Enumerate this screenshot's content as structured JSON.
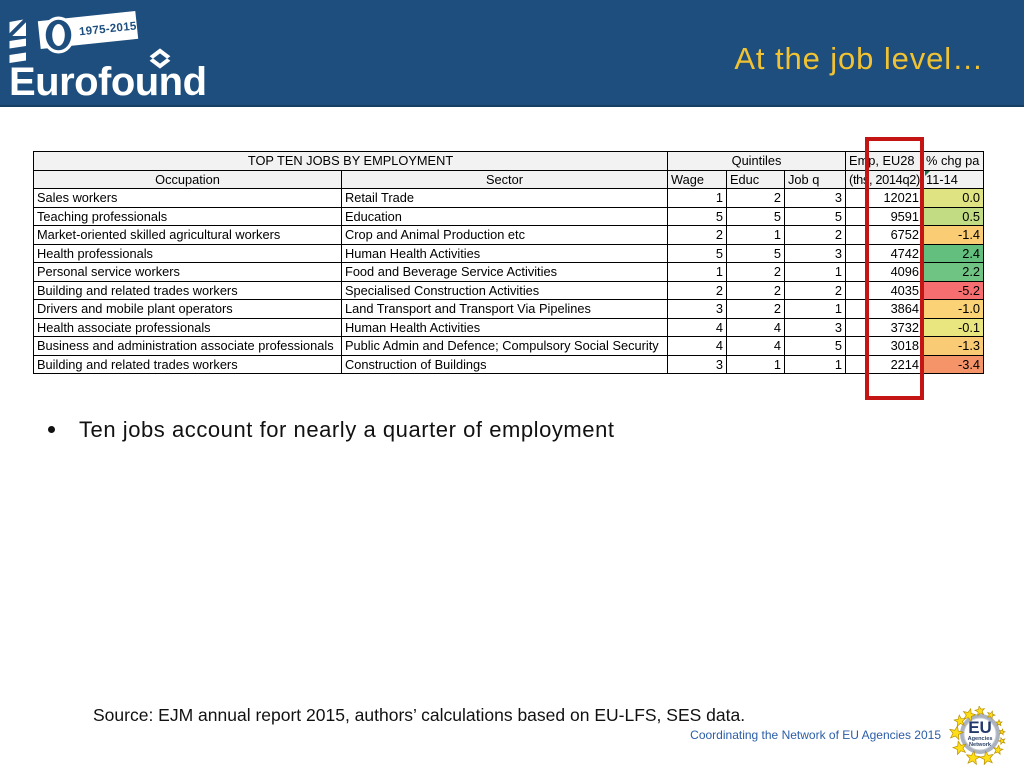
{
  "header": {
    "title": "At the job level…",
    "logo": {
      "number": "40",
      "years": "1975-2015",
      "brand": "Eurofound"
    }
  },
  "bullet": {
    "text": "Ten jobs account for nearly a quarter of employment"
  },
  "footer": {
    "source": "Source: EJM annual report 2015, authors’ calculations based on EU-LFS, SES data.",
    "coordinating": "Coordinating the Network of EU Agencies 2015",
    "eu_badge": {
      "line1": "EU",
      "line2": "Agencies",
      "line3": "Network"
    }
  },
  "colors": {
    "band_blue": "#1D4E7E",
    "title_gold": "#F1C232",
    "footer_blue": "#2B5DA7",
    "highlight_red": "#C41414",
    "header_gray": "#F2F2F2",
    "scale_green": "#63BE7B",
    "scale_yellow": "#FFEB84",
    "scale_red": "#F8696B"
  },
  "chart_data": {
    "type": "table",
    "title": "TOP TEN JOBS BY EMPLOYMENT",
    "group_headers": [
      {
        "label": "TOP TEN JOBS BY EMPLOYMENT",
        "span": 2
      },
      {
        "label": "Quintiles",
        "span": 3
      },
      {
        "label": "Emp, EU28",
        "span": 1
      },
      {
        "label": "% chg pa",
        "span": 1
      }
    ],
    "columns": [
      "Occupation",
      "Sector",
      "Wage",
      "Educ",
      "Job q",
      "(ths, 2014q2)",
      "11-14"
    ],
    "rows": [
      {
        "occupation": "Sales workers",
        "sector": "Retail Trade",
        "wage": "1",
        "educ": "2",
        "jobq": "3",
        "emp": "12021",
        "chg": "0.0",
        "chg_color": "#DFE382"
      },
      {
        "occupation": "Teaching professionals",
        "sector": "Education",
        "wage": "5",
        "educ": "5",
        "jobq": "5",
        "emp": "9591",
        "chg": "0.5",
        "chg_color": "#C2DC83"
      },
      {
        "occupation": "Market-oriented skilled agricultural workers",
        "sector": "Crop and Animal Production etc",
        "wage": "2",
        "educ": "1",
        "jobq": "2",
        "emp": "6752",
        "chg": "-1.4",
        "chg_color": "#FACC74"
      },
      {
        "occupation": "Health professionals",
        "sector": "Human Health Activities",
        "wage": "5",
        "educ": "5",
        "jobq": "3",
        "emp": "4742",
        "chg": "2.4",
        "chg_color": "#63BF7D"
      },
      {
        "occupation": "Personal service workers",
        "sector": "Food and Beverage Service Activities",
        "wage": "1",
        "educ": "2",
        "jobq": "1",
        "emp": "4096",
        "chg": "2.2",
        "chg_color": "#6FC383"
      },
      {
        "occupation": "Building and related trades workers",
        "sector": "Specialised Construction Activities",
        "wage": "2",
        "educ": "2",
        "jobq": "2",
        "emp": "4035",
        "chg": "-5.2",
        "chg_color": "#F76E71"
      },
      {
        "occupation": "Drivers and mobile plant operators",
        "sector": "Land Transport and Transport Via Pipelines",
        "wage": "3",
        "educ": "2",
        "jobq": "1",
        "emp": "3864",
        "chg": "-1.0",
        "chg_color": "#FBD376"
      },
      {
        "occupation": "Health associate professionals",
        "sector": "Human Health Activities",
        "wage": "4",
        "educ": "4",
        "jobq": "3",
        "emp": "3732",
        "chg": "-0.1",
        "chg_color": "#E9E680"
      },
      {
        "occupation": "Business and administration associate professionals",
        "sector": "Public Admin and Defence; Compulsory Social Security",
        "wage": "4",
        "educ": "4",
        "jobq": "5",
        "emp": "3018",
        "chg": "-1.3",
        "chg_color": "#FACB75"
      },
      {
        "occupation": "Building and related trades workers",
        "sector": "Construction of Buildings",
        "wage": "3",
        "educ": "1",
        "jobq": "1",
        "emp": "2214",
        "chg": "-3.4",
        "chg_color": "#F59468"
      }
    ]
  }
}
